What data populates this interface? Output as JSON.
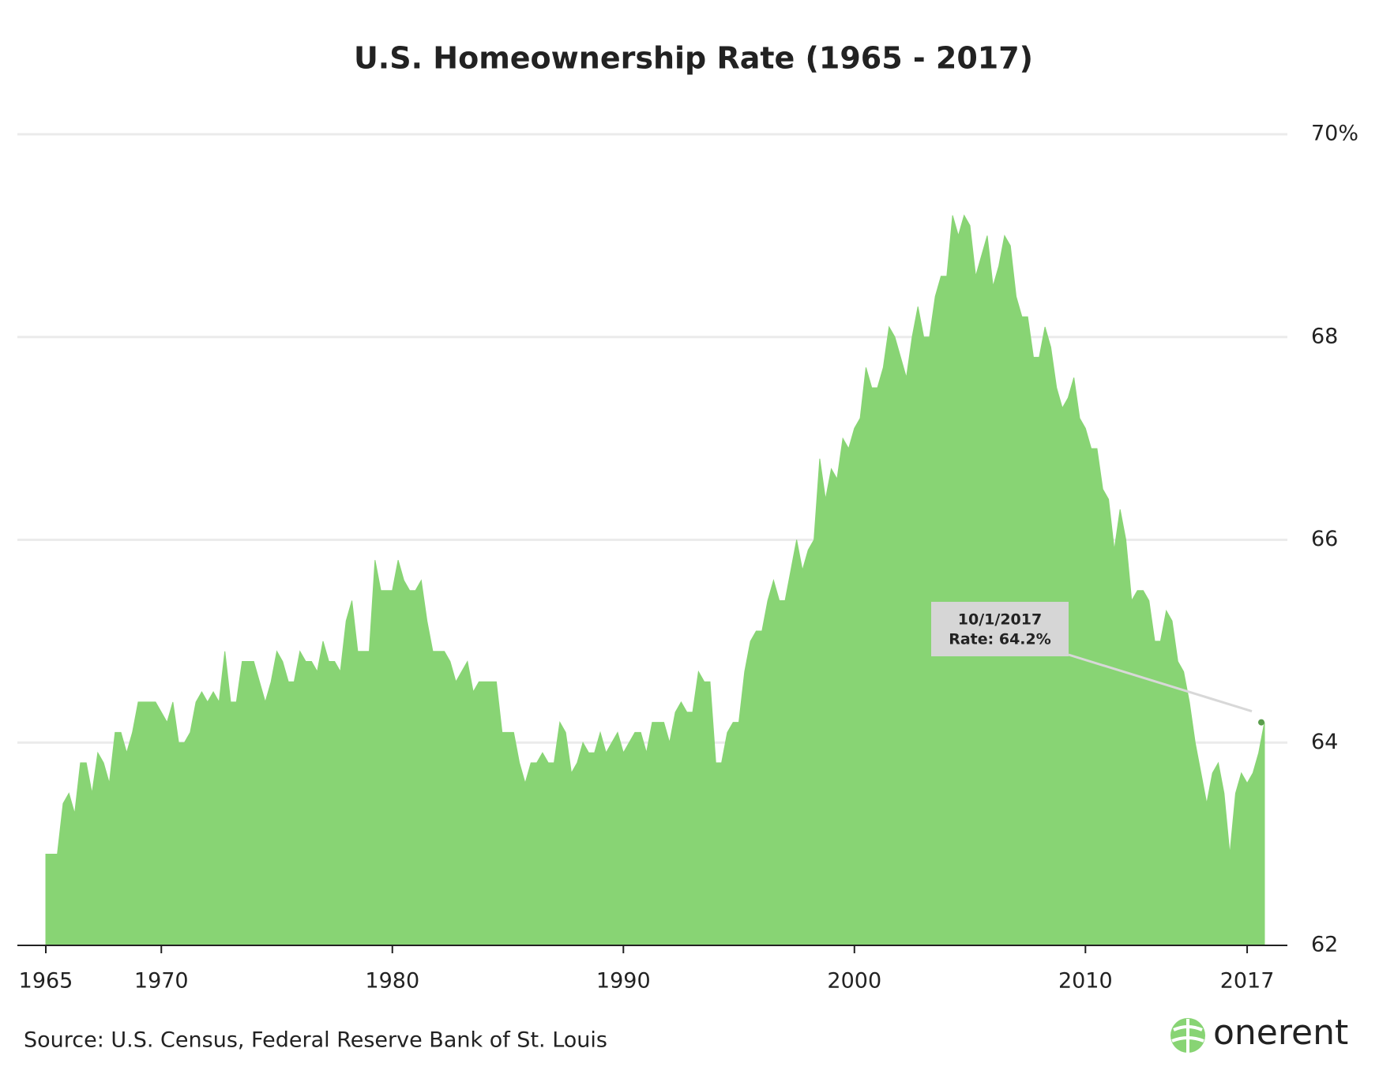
{
  "chart_data": {
    "type": "area",
    "title": "U.S. Homeownership Rate (1965 - 2017)",
    "source": "Source: U.S. Census, Federal Reserve Bank of St. Louis",
    "logo": "onerent",
    "color": "#88d474",
    "annotation": {
      "date": "10/1/2017",
      "text": "Rate: 64.2%"
    },
    "x": [
      1965,
      1965.25,
      1965.5,
      1965.75,
      1966,
      1966.25,
      1966.5,
      1966.75,
      1967,
      1967.25,
      1967.5,
      1967.75,
      1968,
      1968.25,
      1968.5,
      1968.75,
      1969,
      1969.25,
      1969.5,
      1969.75,
      1970,
      1970.25,
      1970.5,
      1970.75,
      1971,
      1971.25,
      1971.5,
      1971.75,
      1972,
      1972.25,
      1972.5,
      1972.75,
      1973,
      1973.25,
      1973.5,
      1973.75,
      1974,
      1974.25,
      1974.5,
      1974.75,
      1975,
      1975.25,
      1975.5,
      1975.75,
      1976,
      1976.25,
      1976.5,
      1976.75,
      1977,
      1977.25,
      1977.5,
      1977.75,
      1978,
      1978.25,
      1978.5,
      1978.75,
      1979,
      1979.25,
      1979.5,
      1979.75,
      1980,
      1980.25,
      1980.5,
      1980.75,
      1981,
      1981.25,
      1981.5,
      1981.75,
      1982,
      1982.25,
      1982.5,
      1982.75,
      1983,
      1983.25,
      1983.5,
      1983.75,
      1984,
      1984.25,
      1984.5,
      1984.75,
      1985,
      1985.25,
      1985.5,
      1985.75,
      1986,
      1986.25,
      1986.5,
      1986.75,
      1987,
      1987.25,
      1987.5,
      1987.75,
      1988,
      1988.25,
      1988.5,
      1988.75,
      1989,
      1989.25,
      1989.5,
      1989.75,
      1990,
      1990.25,
      1990.5,
      1990.75,
      1991,
      1991.25,
      1991.5,
      1991.75,
      1992,
      1992.25,
      1992.5,
      1992.75,
      1993,
      1993.25,
      1993.5,
      1993.75,
      1994,
      1994.25,
      1994.5,
      1994.75,
      1995,
      1995.25,
      1995.5,
      1995.75,
      1996,
      1996.25,
      1996.5,
      1996.75,
      1997,
      1997.25,
      1997.5,
      1997.75,
      1998,
      1998.25,
      1998.5,
      1998.75,
      1999,
      1999.25,
      1999.5,
      1999.75,
      2000,
      2000.25,
      2000.5,
      2000.75,
      2001,
      2001.25,
      2001.5,
      2001.75,
      2002,
      2002.25,
      2002.5,
      2002.75,
      2003,
      2003.25,
      2003.5,
      2003.75,
      2004,
      2004.25,
      2004.5,
      2004.75,
      2005,
      2005.25,
      2005.5,
      2005.75,
      2006,
      2006.25,
      2006.5,
      2006.75,
      2007,
      2007.25,
      2007.5,
      2007.75,
      2008,
      2008.25,
      2008.5,
      2008.75,
      2009,
      2009.25,
      2009.5,
      2009.75,
      2010,
      2010.25,
      2010.5,
      2010.75,
      2011,
      2011.25,
      2011.5,
      2011.75,
      2012,
      2012.25,
      2012.5,
      2012.75,
      2013,
      2013.25,
      2013.5,
      2013.75,
      2014,
      2014.25,
      2014.5,
      2014.75,
      2015,
      2015.25,
      2015.5,
      2015.75,
      2016,
      2016.25,
      2016.5,
      2016.75,
      2017,
      2017.25,
      2017.5,
      2017.75
    ],
    "values": [
      62.9,
      62.9,
      62.9,
      63.4,
      63.5,
      63.3,
      63.8,
      63.8,
      63.5,
      63.9,
      63.8,
      63.6,
      64.1,
      64.1,
      63.9,
      64.1,
      64.4,
      64.4,
      64.4,
      64.4,
      64.3,
      64.2,
      64.4,
      64.0,
      64.0,
      64.1,
      64.4,
      64.5,
      64.4,
      64.5,
      64.4,
      64.9,
      64.4,
      64.4,
      64.8,
      64.8,
      64.8,
      64.6,
      64.4,
      64.6,
      64.9,
      64.8,
      64.6,
      64.6,
      64.9,
      64.8,
      64.8,
      64.7,
      65.0,
      64.8,
      64.8,
      64.7,
      65.2,
      65.4,
      64.9,
      64.9,
      64.9,
      65.8,
      65.5,
      65.5,
      65.5,
      65.8,
      65.6,
      65.5,
      65.5,
      65.6,
      65.2,
      64.9,
      64.9,
      64.9,
      64.8,
      64.6,
      64.7,
      64.8,
      64.5,
      64.6,
      64.6,
      64.6,
      64.6,
      64.1,
      64.1,
      64.1,
      63.8,
      63.6,
      63.8,
      63.8,
      63.9,
      63.8,
      63.8,
      64.2,
      64.1,
      63.7,
      63.8,
      64.0,
      63.9,
      63.9,
      64.1,
      63.9,
      64.0,
      64.1,
      63.9,
      64.0,
      64.1,
      64.1,
      63.9,
      64.2,
      64.2,
      64.2,
      64.0,
      64.3,
      64.4,
      64.3,
      64.3,
      64.7,
      64.6,
      64.6,
      63.8,
      63.8,
      64.1,
      64.2,
      64.2,
      64.7,
      65.0,
      65.1,
      65.1,
      65.4,
      65.6,
      65.4,
      65.4,
      65.7,
      66.0,
      65.7,
      65.9,
      66.0,
      66.8,
      66.4,
      66.7,
      66.6,
      67.0,
      66.9,
      67.1,
      67.2,
      67.7,
      67.5,
      67.5,
      67.7,
      68.1,
      68.0,
      67.8,
      67.6,
      68.0,
      68.3,
      68.0,
      68.0,
      68.4,
      68.6,
      68.6,
      69.2,
      69.0,
      69.2,
      69.1,
      68.6,
      68.8,
      69.0,
      68.5,
      68.7,
      69.0,
      68.9,
      68.4,
      68.2,
      68.2,
      67.8,
      67.8,
      68.1,
      67.9,
      67.5,
      67.3,
      67.4,
      67.6,
      67.2,
      67.1,
      66.9,
      66.9,
      66.5,
      66.4,
      65.9,
      66.3,
      66.0,
      65.4,
      65.5,
      65.5,
      65.4,
      65.0,
      65.0,
      65.3,
      65.2,
      64.8,
      64.7,
      64.4,
      64.0,
      63.7,
      63.4,
      63.7,
      63.8,
      63.5,
      62.9,
      63.5,
      63.7,
      63.6,
      63.7,
      63.9,
      64.2
    ],
    "xlim": [
      1965,
      2017.75
    ],
    "xticks": [
      1965,
      1970,
      1980,
      1990,
      2000,
      2010,
      2017
    ],
    "ylim": [
      62,
      70
    ],
    "yticks": [
      62,
      64,
      66,
      68,
      {
        "value": 70,
        "label": "70%"
      }
    ],
    "grid": true
  }
}
